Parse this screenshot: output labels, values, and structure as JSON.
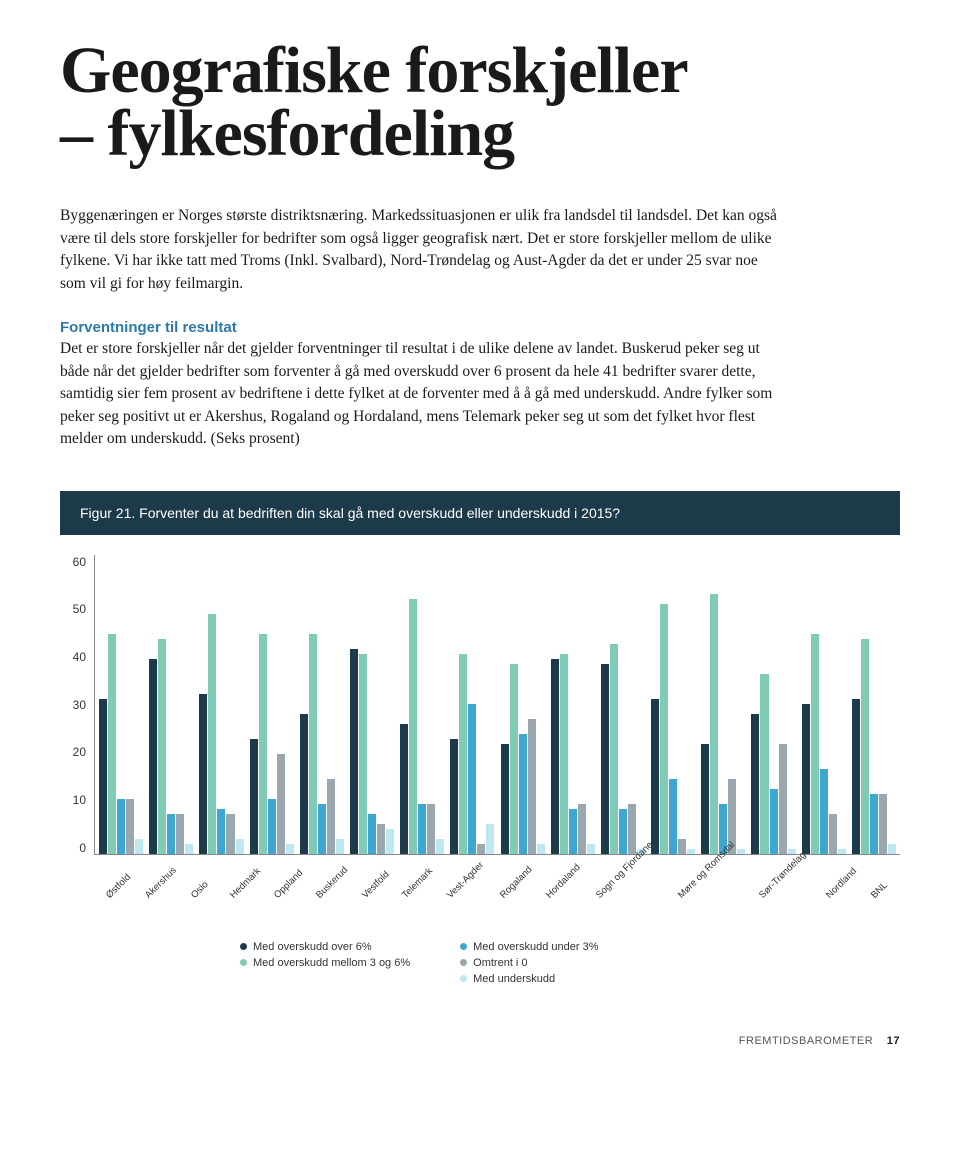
{
  "title_line1": "Geografiske forskjeller",
  "title_line2": "– fylkesfordeling",
  "intro": "Byggenæringen er Norges største distriktsnæring. Markedssituasjonen er ulik fra landsdel til landsdel. Det kan også være til dels store forskjeller for bedrifter som også ligger geografisk nært. Det er store forskjeller mellom de ulike fylkene. Vi har ikke tatt med Troms (Inkl. Svalbard), Nord-Trøndelag og Aust-Agder da det er under 25 svar noe som vil gi for høy feilmargin.",
  "section_head": "Forventninger til resultat",
  "body": "Det er store forskjeller når det gjelder forventninger til resultat i de ulike delene av landet. Buskerud peker seg ut både når det gjelder bedrifter som forventer å gå med overskudd over 6 prosent da hele 41 bedrifter svarer dette, samtidig sier fem prosent av bedriftene i dette fylket at de forventer med å å gå med underskudd. Andre fylker som peker seg positivt ut er Akershus, Rogaland og Hordaland, mens Telemark peker seg ut som det fylket hvor flest melder om underskudd. (Seks prosent)",
  "figure_label": "Figur 21. Forventer du at bedriften din skal gå med overskudd eller underskudd i 2015?",
  "chart": {
    "ylim_max": 60,
    "yticks": [
      "60",
      "50",
      "40",
      "30",
      "20",
      "10",
      "0"
    ],
    "colors": {
      "over6": "#1c3a4a",
      "mid36": "#7fcbb5",
      "under3": "#3da6d1",
      "omtrent0": "#9aa7ae",
      "underskudd": "#bfe7f2"
    },
    "categories": [
      {
        "label": "Østfold",
        "vals": {
          "over6": 31,
          "mid36": 44,
          "under3": 11,
          "omtrent0": 11,
          "underskudd": 3
        }
      },
      {
        "label": "Akershus",
        "vals": {
          "over6": 39,
          "mid36": 43,
          "under3": 8,
          "omtrent0": 8,
          "underskudd": 2
        }
      },
      {
        "label": "Oslo",
        "vals": {
          "over6": 32,
          "mid36": 48,
          "under3": 9,
          "omtrent0": 8,
          "underskudd": 3
        }
      },
      {
        "label": "Hedmark",
        "vals": {
          "over6": 23,
          "mid36": 44,
          "under3": 11,
          "omtrent0": 20,
          "underskudd": 2
        }
      },
      {
        "label": "Oppland",
        "vals": {
          "over6": 28,
          "mid36": 44,
          "under3": 10,
          "omtrent0": 15,
          "underskudd": 3
        }
      },
      {
        "label": "Buskerud",
        "vals": {
          "over6": 41,
          "mid36": 40,
          "under3": 8,
          "omtrent0": 6,
          "underskudd": 5
        }
      },
      {
        "label": "Vestfold",
        "vals": {
          "over6": 26,
          "mid36": 51,
          "under3": 10,
          "omtrent0": 10,
          "underskudd": 3
        }
      },
      {
        "label": "Telemark",
        "vals": {
          "over6": 23,
          "mid36": 40,
          "under3": 30,
          "omtrent0": 2,
          "underskudd": 6
        }
      },
      {
        "label": "Vest-Agder",
        "vals": {
          "over6": 22,
          "mid36": 38,
          "under3": 24,
          "omtrent0": 27,
          "underskudd": 2
        }
      },
      {
        "label": "Rogaland",
        "vals": {
          "over6": 39,
          "mid36": 40,
          "under3": 9,
          "omtrent0": 10,
          "underskudd": 2
        }
      },
      {
        "label": "Hordaland",
        "vals": {
          "over6": 38,
          "mid36": 42,
          "under3": 9,
          "omtrent0": 10,
          "underskudd": 1
        }
      },
      {
        "label": "Sogn og Fjordane",
        "vals": {
          "over6": 31,
          "mid36": 50,
          "under3": 15,
          "omtrent0": 3,
          "underskudd": 1
        }
      },
      {
        "label": "Møre og Romsdal",
        "vals": {
          "over6": 22,
          "mid36": 52,
          "under3": 10,
          "omtrent0": 15,
          "underskudd": 1
        }
      },
      {
        "label": "Sør-Trøndelag",
        "vals": {
          "over6": 28,
          "mid36": 36,
          "under3": 13,
          "omtrent0": 22,
          "underskudd": 1
        }
      },
      {
        "label": "Nordland",
        "vals": {
          "over6": 30,
          "mid36": 44,
          "under3": 17,
          "omtrent0": 8,
          "underskudd": 1
        }
      },
      {
        "label": "BNL",
        "vals": {
          "over6": 31,
          "mid36": 43,
          "under3": 12,
          "omtrent0": 12,
          "underskudd": 2
        }
      }
    ],
    "legend": [
      {
        "key": "over6",
        "label": "Med overskudd over 6%"
      },
      {
        "key": "mid36",
        "label": "Med overskudd mellom 3 og 6%"
      },
      {
        "key": "under3",
        "label": "Med overskudd under 3%"
      },
      {
        "key": "omtrent0",
        "label": "Omtrent i 0"
      },
      {
        "key": "underskudd",
        "label": "Med underskudd"
      }
    ]
  },
  "footer_label": "FREMTIDSBAROMETER",
  "footer_page": "17"
}
